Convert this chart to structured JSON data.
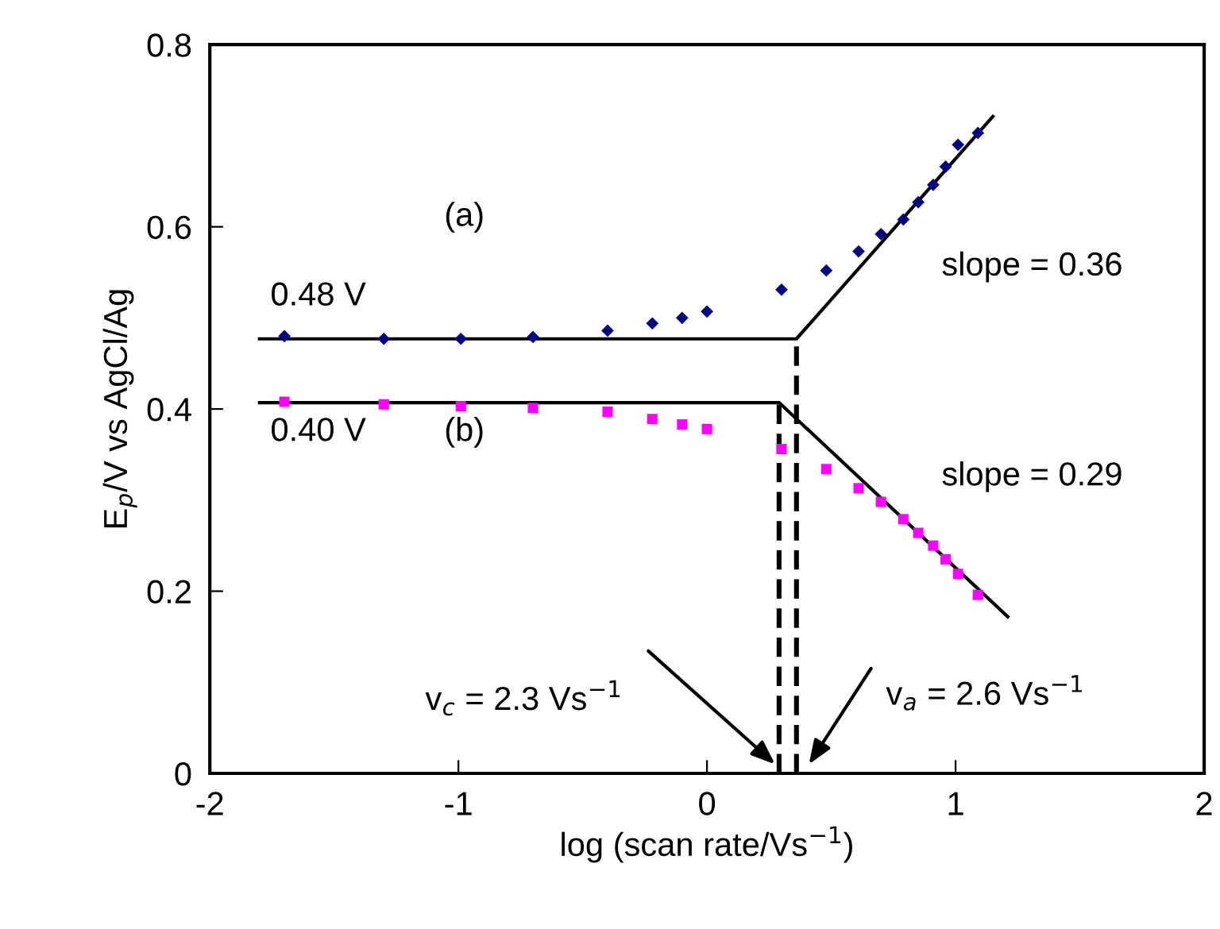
{
  "chart_data": {
    "type": "scatter",
    "xlabel": "log (scan rate/Vs$^{−1}$)",
    "ylabel": "E$_{p}$/V vs AgCl/Ag",
    "xlim": [
      -2,
      2
    ],
    "ylim": [
      0,
      0.8
    ],
    "xticks": [
      -2,
      -1,
      0,
      1,
      2
    ],
    "yticks": [
      0,
      0.2,
      0.4,
      0.6,
      0.8
    ],
    "grid": false,
    "legend": false,
    "series": [
      {
        "marker": "diamond",
        "color": "#000080",
        "x": [
          -1.7,
          -1.3,
          -0.99,
          -0.7,
          -0.4,
          -0.22,
          -0.1,
          0.0,
          0.3,
          0.48,
          0.61,
          0.7,
          0.79,
          0.85,
          0.91,
          0.96,
          1.01,
          1.09
        ],
        "values": [
          0.48,
          0.477,
          0.477,
          0.479,
          0.486,
          0.494,
          0.5,
          0.507,
          0.531,
          0.552,
          0.573,
          0.592,
          0.608,
          0.627,
          0.646,
          0.666,
          0.69,
          0.703
        ]
      },
      {
        "marker": "square",
        "color": "#ff00ff",
        "x": [
          -1.7,
          -1.3,
          -0.99,
          -0.7,
          -0.4,
          -0.22,
          -0.1,
          0.0,
          0.3,
          0.48,
          0.61,
          0.7,
          0.79,
          0.85,
          0.91,
          0.96,
          1.01,
          1.09
        ],
        "values": [
          0.408,
          0.405,
          0.403,
          0.401,
          0.397,
          0.389,
          0.383,
          0.378,
          0.356,
          0.334,
          0.313,
          0.298,
          0.279,
          0.264,
          0.25,
          0.235,
          0.219,
          0.196
        ]
      },
      {
        "type": "line",
        "line_style": "solid",
        "color": "#000000",
        "x": [
          -1.8,
          0.36,
          1.15
        ],
        "values": [
          0.477,
          0.477,
          0.721
        ]
      },
      {
        "type": "line",
        "line_style": "solid",
        "color": "#000000",
        "x": [
          -1.8,
          0.29,
          1.21
        ],
        "values": [
          0.407,
          0.407,
          0.172
        ]
      },
      {
        "type": "line",
        "line_style": "dashed",
        "color": "#000000",
        "x": [
          0.29,
          0.29
        ],
        "values": [
          0,
          0.407
        ]
      },
      {
        "type": "line",
        "line_style": "dashed",
        "color": "#000000",
        "x": [
          0.36,
          0.36
        ],
        "values": [
          0,
          0.477
        ]
      }
    ],
    "annotations": [
      "(a)",
      "(b)",
      "0.48 V",
      "0.40 V",
      "slope = 0.36",
      "slope = 0.29",
      "v$_{c}$ = 2.3 Vs$^{−1}$",
      "v$_{a}$ = 2.6 Vs$^{−1}$"
    ]
  }
}
